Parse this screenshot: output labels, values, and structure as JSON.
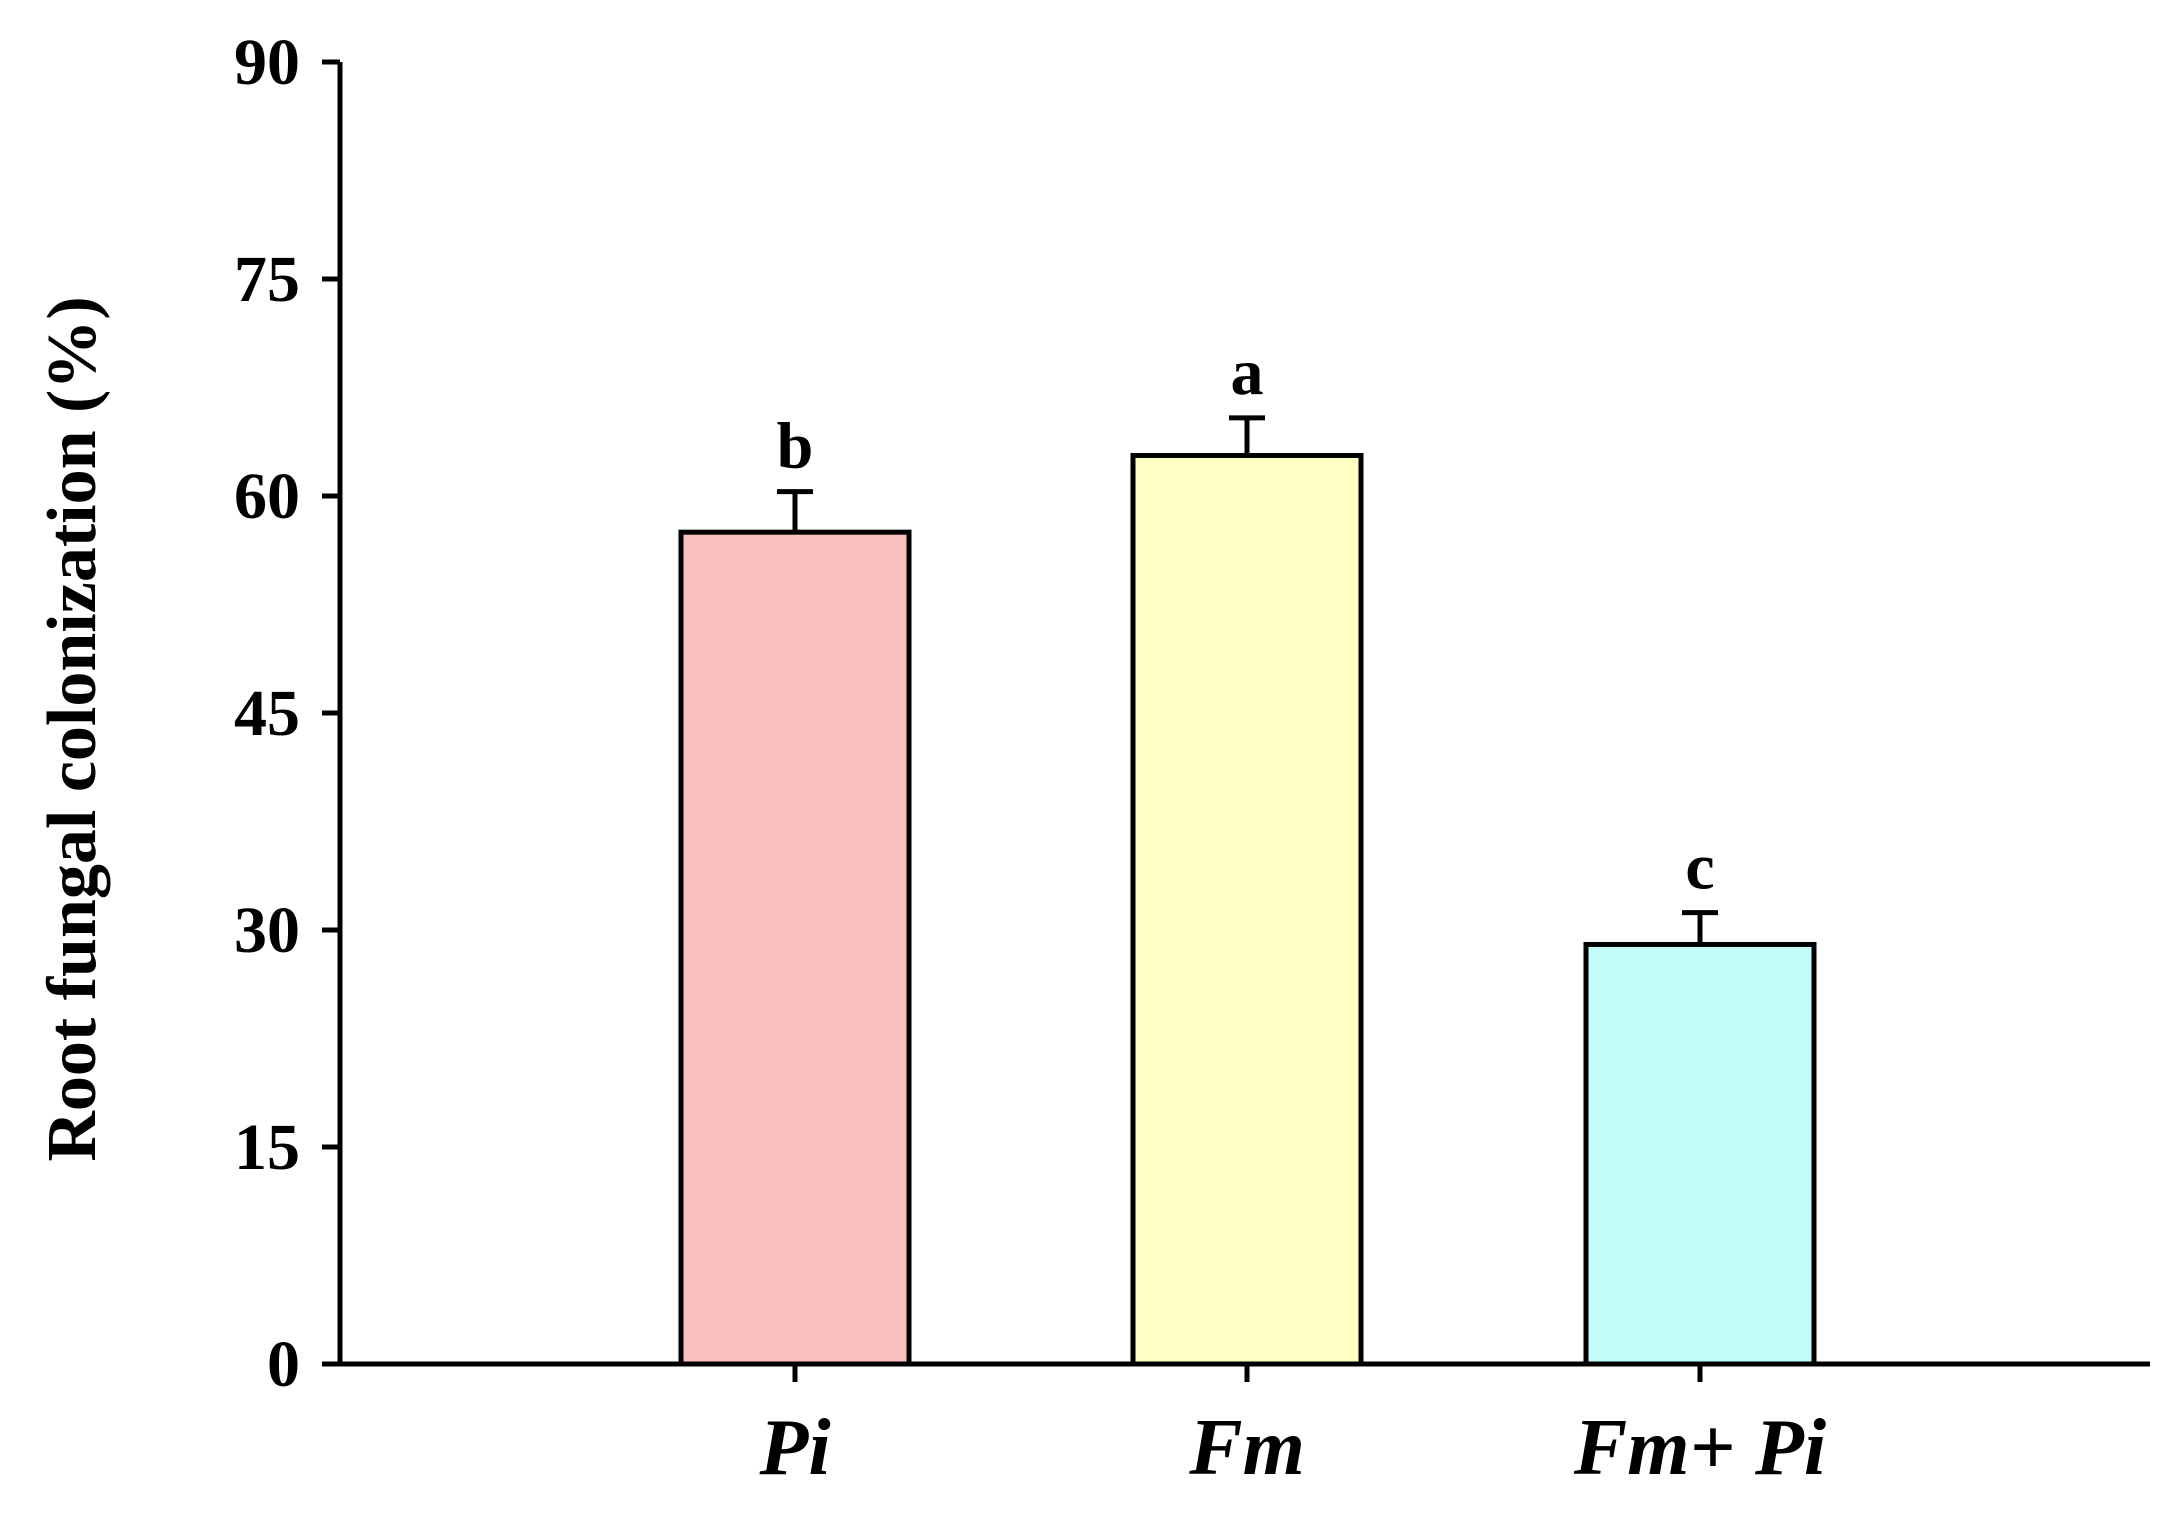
{
  "chart_data": {
    "type": "bar",
    "title": "",
    "xlabel": "",
    "ylabel": "Root fungal colonization (%)",
    "ylim": [
      0,
      90
    ],
    "yticks": [
      "0",
      "15",
      "30",
      "45",
      "60",
      "75",
      "90"
    ],
    "categories": [
      "Pi",
      "Fm",
      "Fm+ Pi"
    ],
    "values": [
      57.5,
      62.8,
      29
    ],
    "errors": [
      2.8,
      2.6,
      2.2
    ],
    "significance": [
      "b",
      "a",
      "c"
    ],
    "colors": [
      "#f9c0c0",
      "#ffffc3",
      "#c3fbfb"
    ],
    "grid": false,
    "legend": "none"
  }
}
